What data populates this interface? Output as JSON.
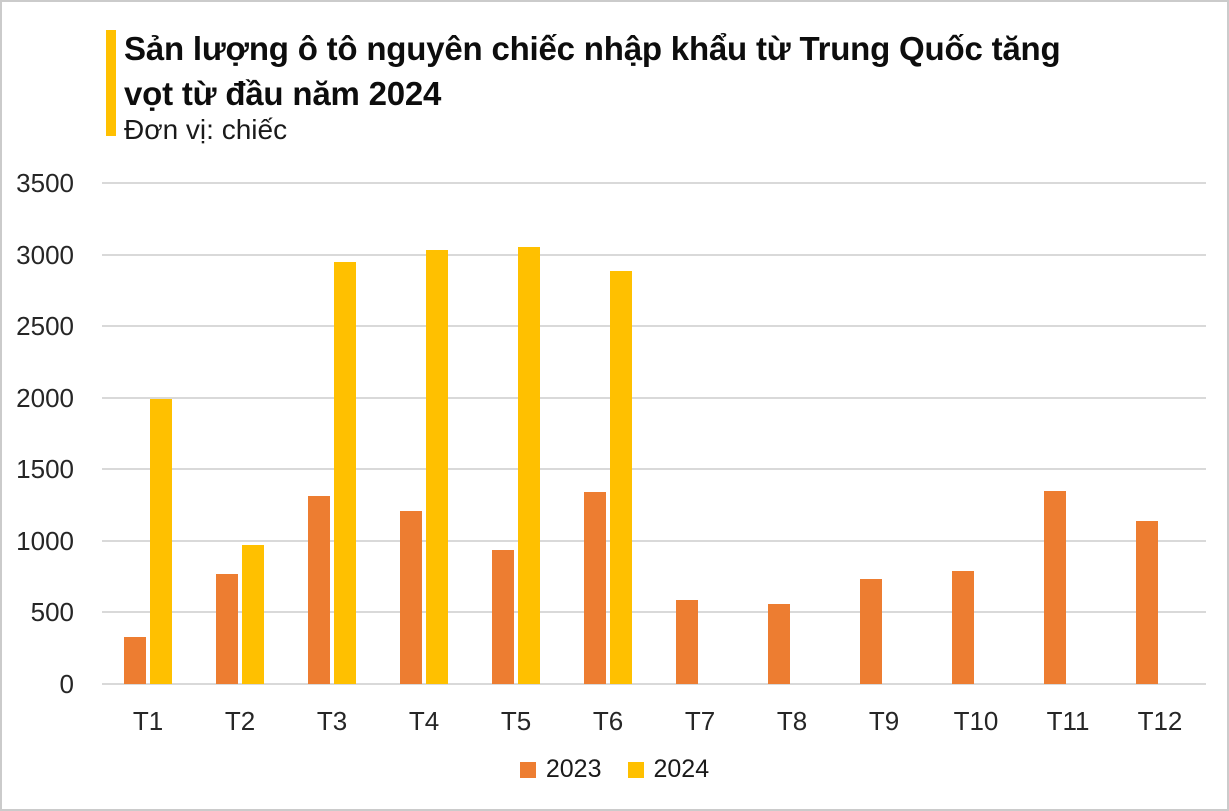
{
  "page": {
    "background": "#ffffff",
    "border_color": "#cbcbcb"
  },
  "header": {
    "accent_color": "#FFC000",
    "title_line1": "Sản lượng ô tô nguyên chiếc nhập khẩu từ Trung Quốc tăng",
    "title_line2": "vọt từ đầu năm 2024",
    "subtitle": "Đơn vị: chiếc"
  },
  "chart_data": {
    "type": "bar",
    "title": "Sản lượng ô tô nguyên chiếc nhập khẩu từ Trung Quốc tăng vọt từ đầu năm 2024",
    "unit_label": "Đơn vị: chiếc",
    "categories": [
      "T1",
      "T2",
      "T3",
      "T4",
      "T5",
      "T6",
      "T7",
      "T8",
      "T9",
      "T10",
      "T11",
      "T12"
    ],
    "series": [
      {
        "name": "2023",
        "color": "#ED7D31",
        "values": [
          325,
          770,
          1315,
          1210,
          935,
          1340,
          590,
          560,
          735,
          790,
          1350,
          1140
        ]
      },
      {
        "name": "2024",
        "color": "#FFC000",
        "values": [
          1990,
          970,
          2950,
          3035,
          3055,
          2885,
          null,
          null,
          null,
          null,
          null,
          null
        ]
      }
    ],
    "ylim": [
      0,
      3500
    ],
    "yticks": [
      0,
      500,
      1000,
      1500,
      2000,
      2500,
      3000,
      3500
    ],
    "grid": true,
    "gridline_color": "#d9d9d9",
    "legend_position": "bottom"
  },
  "legend": {
    "items": [
      {
        "label": "2023",
        "color": "#ED7D31"
      },
      {
        "label": "2024",
        "color": "#FFC000"
      }
    ]
  }
}
